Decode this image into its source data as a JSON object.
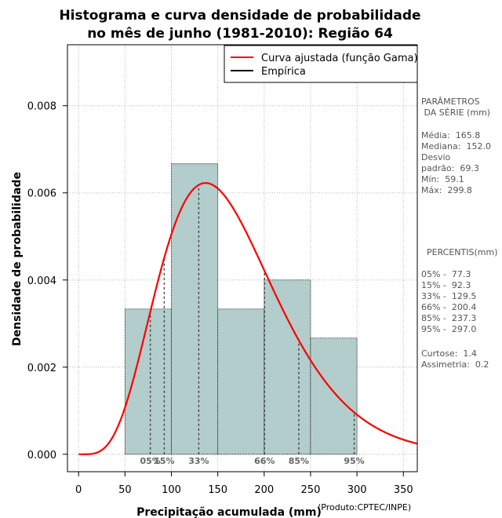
{
  "chart_data": {
    "type": "histogram",
    "title_lines": [
      "Histograma e curva densidade de probabilidade",
      "no mês de junho (1981-2010): Região 64"
    ],
    "xlabel": "Precipitação acumulada (mm)",
    "ylabel": "Densidade de probabilidade",
    "xlim": [
      -12,
      365
    ],
    "ylim": [
      -0.0004,
      0.0094
    ],
    "x_ticks": [
      0,
      50,
      100,
      150,
      200,
      250,
      300,
      350
    ],
    "y_ticks": [
      0.0,
      0.002,
      0.004,
      0.006,
      0.008
    ],
    "y_tick_labels": [
      "0.000",
      "0.002",
      "0.004",
      "0.006",
      "0.008"
    ],
    "grid": true,
    "bins": [
      {
        "from": 50,
        "to": 100,
        "density": 0.003333
      },
      {
        "from": 100,
        "to": 150,
        "density": 0.006667
      },
      {
        "from": 150,
        "to": 200,
        "density": 0.003333
      },
      {
        "from": 200,
        "to": 250,
        "density": 0.004
      },
      {
        "from": 250,
        "to": 300,
        "density": 0.002667
      }
    ],
    "bar_color": "#b3cccc",
    "curve_color": "#ff0000",
    "gamma_fit": {
      "mean": 165.8,
      "sd": 69.3
    },
    "percentile_markers": [
      {
        "label": "05%",
        "x": 77.3
      },
      {
        "label": "15%",
        "x": 92.3
      },
      {
        "label": "33%",
        "x": 129.5
      },
      {
        "label": "66%",
        "x": 200.4
      },
      {
        "label": "85%",
        "x": 237.3
      },
      {
        "label": "95%",
        "x": 297.0
      }
    ],
    "legend": {
      "position": "top-right",
      "entries": [
        {
          "label": "Curva ajustada (função Gama)",
          "color": "#ff0000"
        },
        {
          "label": "Empírica",
          "color": "#000000"
        }
      ]
    }
  },
  "sidebar": {
    "params_title_1": "PARÂMETROS",
    "params_title_2": " DA SÉRIE (mm)",
    "media": "Média:  165.8",
    "mediana": "Mediana:  152.0",
    "desvio_1": "Desvio",
    "desvio_2": "padrão:  69.3",
    "min": "Mín:  59.1",
    "max": "Máx:  299.8",
    "percentis_title": "  PERCENTIS(mm)",
    "p05": "05% -  77.3",
    "p15": "15% -  92.3",
    "p33": "33% -  129.5",
    "p66": "66% -  200.4",
    "p85": "85% -  237.3",
    "p95": "95% -  297.0",
    "curtose": "Curtose:  1.4",
    "assimetria": "Assimetria:  0.2"
  },
  "credit": "(Produto:CPTEC/INPE)"
}
